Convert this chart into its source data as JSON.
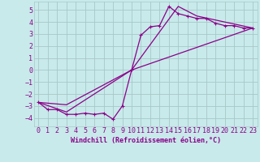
{
  "bg_color": "#c8eaea",
  "line_color": "#8b008b",
  "grid_color": "#a8c8c8",
  "xlabel": "Windchill (Refroidissement éolien,°C)",
  "xlim": [
    -0.5,
    23.5
  ],
  "ylim": [
    -4.7,
    5.7
  ],
  "yticks": [
    -4,
    -3,
    -2,
    -1,
    0,
    1,
    2,
    3,
    4,
    5
  ],
  "xticks": [
    0,
    1,
    2,
    3,
    4,
    5,
    6,
    7,
    8,
    9,
    10,
    11,
    12,
    13,
    14,
    15,
    16,
    17,
    18,
    19,
    20,
    21,
    22,
    23
  ],
  "series1_x": [
    0,
    1,
    2,
    3,
    4,
    5,
    6,
    7,
    8,
    9,
    10,
    11,
    12,
    13,
    14,
    15,
    16,
    17,
    18,
    19,
    20,
    21,
    22,
    23
  ],
  "series1_y": [
    -2.7,
    -3.3,
    -3.3,
    -3.7,
    -3.7,
    -3.6,
    -3.7,
    -3.6,
    -4.1,
    -3.0,
    0.0,
    2.9,
    3.6,
    3.7,
    5.3,
    4.7,
    4.5,
    4.3,
    4.3,
    3.9,
    3.7,
    3.7,
    3.5,
    3.5
  ],
  "series2_x": [
    0,
    3,
    10,
    23
  ],
  "series2_y": [
    -2.7,
    -2.9,
    0.0,
    3.5
  ],
  "series3_x": [
    0,
    3,
    10,
    15,
    17,
    23
  ],
  "series3_y": [
    -2.7,
    -3.5,
    0.0,
    5.3,
    4.5,
    3.5
  ],
  "xlabel_fontsize": 6,
  "tick_fontsize": 6
}
